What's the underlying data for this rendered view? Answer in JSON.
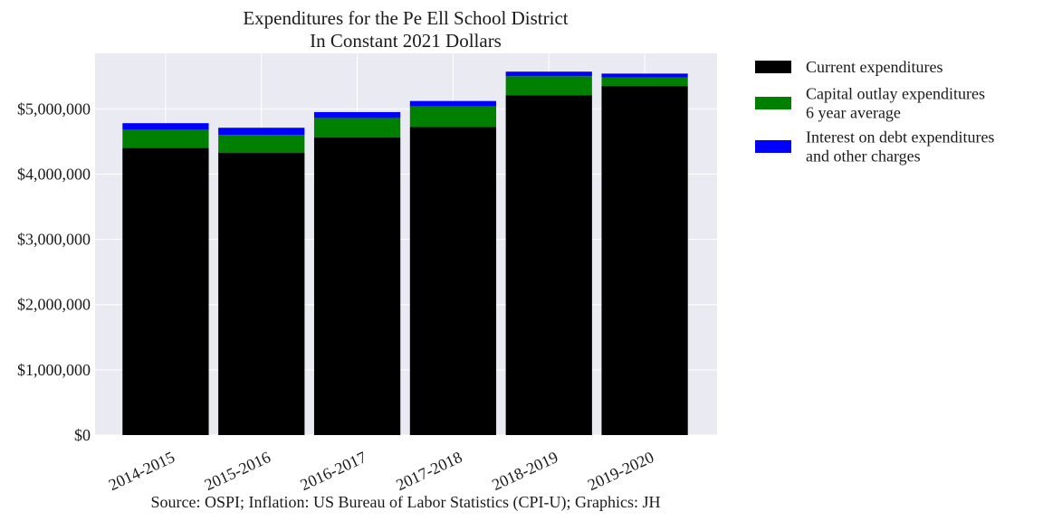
{
  "chart_data": {
    "type": "bar",
    "stacked": true,
    "title_lines": [
      "Expenditures for the Pe Ell School District",
      "In Constant 2021 Dollars"
    ],
    "source": "Source: OSPI; Inflation: US Bureau of Labor Statistics (CPI-U); Graphics: JH",
    "categories": [
      "2014-2015",
      "2015-2016",
      "2016-2017",
      "2017-2018",
      "2018-2019",
      "2019-2020"
    ],
    "series": [
      {
        "name": "Current expenditures",
        "color": "#000000",
        "values": [
          4400000,
          4330000,
          4560000,
          4720000,
          5210000,
          5350000
        ]
      },
      {
        "name": "Capital outlay expenditures 6 year average",
        "name_lines": [
          "Capital outlay expenditures",
          "6 year average"
        ],
        "color": "#008000",
        "values": [
          280000,
          270000,
          300000,
          320000,
          290000,
          130000
        ]
      },
      {
        "name": "Interest on debt expenditures and other charges",
        "name_lines": [
          "Interest on debt expenditures",
          "and other charges"
        ],
        "color": "#0000ff",
        "values": [
          100000,
          110000,
          90000,
          80000,
          70000,
          60000
        ]
      }
    ],
    "ylim": [
      0,
      5850000
    ],
    "yticks": [
      0,
      1000000,
      2000000,
      3000000,
      4000000,
      5000000
    ],
    "ytick_labels": [
      "$0",
      "$1,000,000",
      "$2,000,000",
      "$3,000,000",
      "$4,000,000",
      "$5,000,000"
    ],
    "grid": true,
    "legend_position": "outside-right-top",
    "colors": {
      "plot_background": "#eaeaf2",
      "grid": "#ffffff"
    }
  }
}
